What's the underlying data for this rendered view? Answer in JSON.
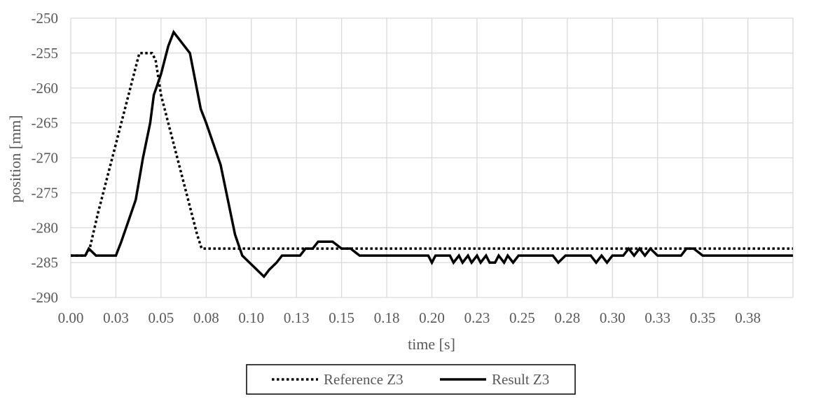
{
  "chart_data": {
    "type": "line",
    "title": "",
    "xlabel": "time [s]",
    "ylabel": "position [mm]",
    "xlim": [
      0,
      0.4
    ],
    "ylim": [
      -290,
      -250
    ],
    "x_ticks": [
      0,
      0.025,
      0.05,
      0.075,
      0.1,
      0.125,
      0.15,
      0.175,
      0.2,
      0.225,
      0.25,
      0.275,
      0.3,
      0.325,
      0.35,
      0.375
    ],
    "x_tick_labels": [
      "0.00",
      "0.03",
      "0.05",
      "0.08",
      "0.10",
      "0.13",
      "0.15",
      "0.18",
      "0.20",
      "0.23",
      "0.25",
      "0.28",
      "0.30",
      "0.33",
      "0.35",
      "0.38"
    ],
    "y_ticks": [
      -250,
      -255,
      -260,
      -265,
      -270,
      -275,
      -280,
      -285,
      -290
    ],
    "y_tick_labels": [
      "-250",
      "-255",
      "-260",
      "-265",
      "-270",
      "-275",
      "-280",
      "-285",
      "-290"
    ],
    "grid": true,
    "legend_position": "bottom",
    "series": [
      {
        "name": "Reference Z3",
        "style": "dotted",
        "color": "#000000",
        "x": [
          0,
          0.008,
          0.0105,
          0.015,
          0.02,
          0.025,
          0.03,
          0.035,
          0.038,
          0.045,
          0.047,
          0.05,
          0.055,
          0.06,
          0.065,
          0.07,
          0.0725,
          0.4
        ],
        "y": [
          -284,
          -284,
          -283,
          -278,
          -273,
          -268,
          -263,
          -258,
          -255,
          -255,
          -256,
          -261,
          -266,
          -271,
          -276,
          -281,
          -283,
          -283
        ]
      },
      {
        "name": "Result Z3",
        "style": "solid",
        "color": "#000000",
        "x": [
          0,
          0.004,
          0.008,
          0.01,
          0.014,
          0.019,
          0.022,
          0.025,
          0.028,
          0.032,
          0.036,
          0.04,
          0.044,
          0.046,
          0.05,
          0.054,
          0.057,
          0.06,
          0.063,
          0.066,
          0.069,
          0.072,
          0.075,
          0.079,
          0.083,
          0.087,
          0.091,
          0.095,
          0.099,
          0.103,
          0.107,
          0.11,
          0.114,
          0.117,
          0.12,
          0.124,
          0.127,
          0.13,
          0.134,
          0.137,
          0.14,
          0.145,
          0.15,
          0.155,
          0.16,
          0.165,
          0.17,
          0.175,
          0.181,
          0.186,
          0.189,
          0.192,
          0.195,
          0.198,
          0.2,
          0.202,
          0.205,
          0.207,
          0.21,
          0.212,
          0.215,
          0.217,
          0.22,
          0.222,
          0.225,
          0.227,
          0.23,
          0.232,
          0.235,
          0.237,
          0.24,
          0.242,
          0.245,
          0.248,
          0.252,
          0.256,
          0.26,
          0.264,
          0.267,
          0.27,
          0.274,
          0.278,
          0.282,
          0.285,
          0.288,
          0.291,
          0.294,
          0.297,
          0.3,
          0.303,
          0.306,
          0.309,
          0.312,
          0.315,
          0.318,
          0.321,
          0.325,
          0.329,
          0.332,
          0.335,
          0.338,
          0.341,
          0.345,
          0.35,
          0.36,
          0.37,
          0.38,
          0.39,
          0.4
        ],
        "y": [
          -284,
          -284,
          -284,
          -283,
          -284,
          -284,
          -284,
          -284,
          -282,
          -279,
          -276,
          -270,
          -265,
          -261,
          -258,
          -254,
          -252,
          -253,
          -254,
          -255,
          -259,
          -263,
          -265,
          -268,
          -271,
          -276,
          -281,
          -284,
          -285,
          -286,
          -287,
          -286,
          -285,
          -284,
          -284,
          -284,
          -284,
          -283,
          -283,
          -282,
          -282,
          -282,
          -283,
          -283,
          -284,
          -284,
          -284,
          -284,
          -284,
          -284,
          -284,
          -284,
          -284,
          -284,
          -285,
          -284,
          -284,
          -284,
          -284,
          -285,
          -284,
          -285,
          -284,
          -285,
          -284,
          -285,
          -284,
          -285,
          -285,
          -284,
          -285,
          -284,
          -285,
          -284,
          -284,
          -284,
          -284,
          -284,
          -284,
          -285,
          -284,
          -284,
          -284,
          -284,
          -284,
          -285,
          -284,
          -285,
          -284,
          -284,
          -284,
          -283,
          -284,
          -283,
          -284,
          -283,
          -284,
          -284,
          -284,
          -284,
          -284,
          -283,
          -283,
          -284,
          -284,
          -284,
          -284,
          -284,
          -284
        ]
      }
    ]
  }
}
